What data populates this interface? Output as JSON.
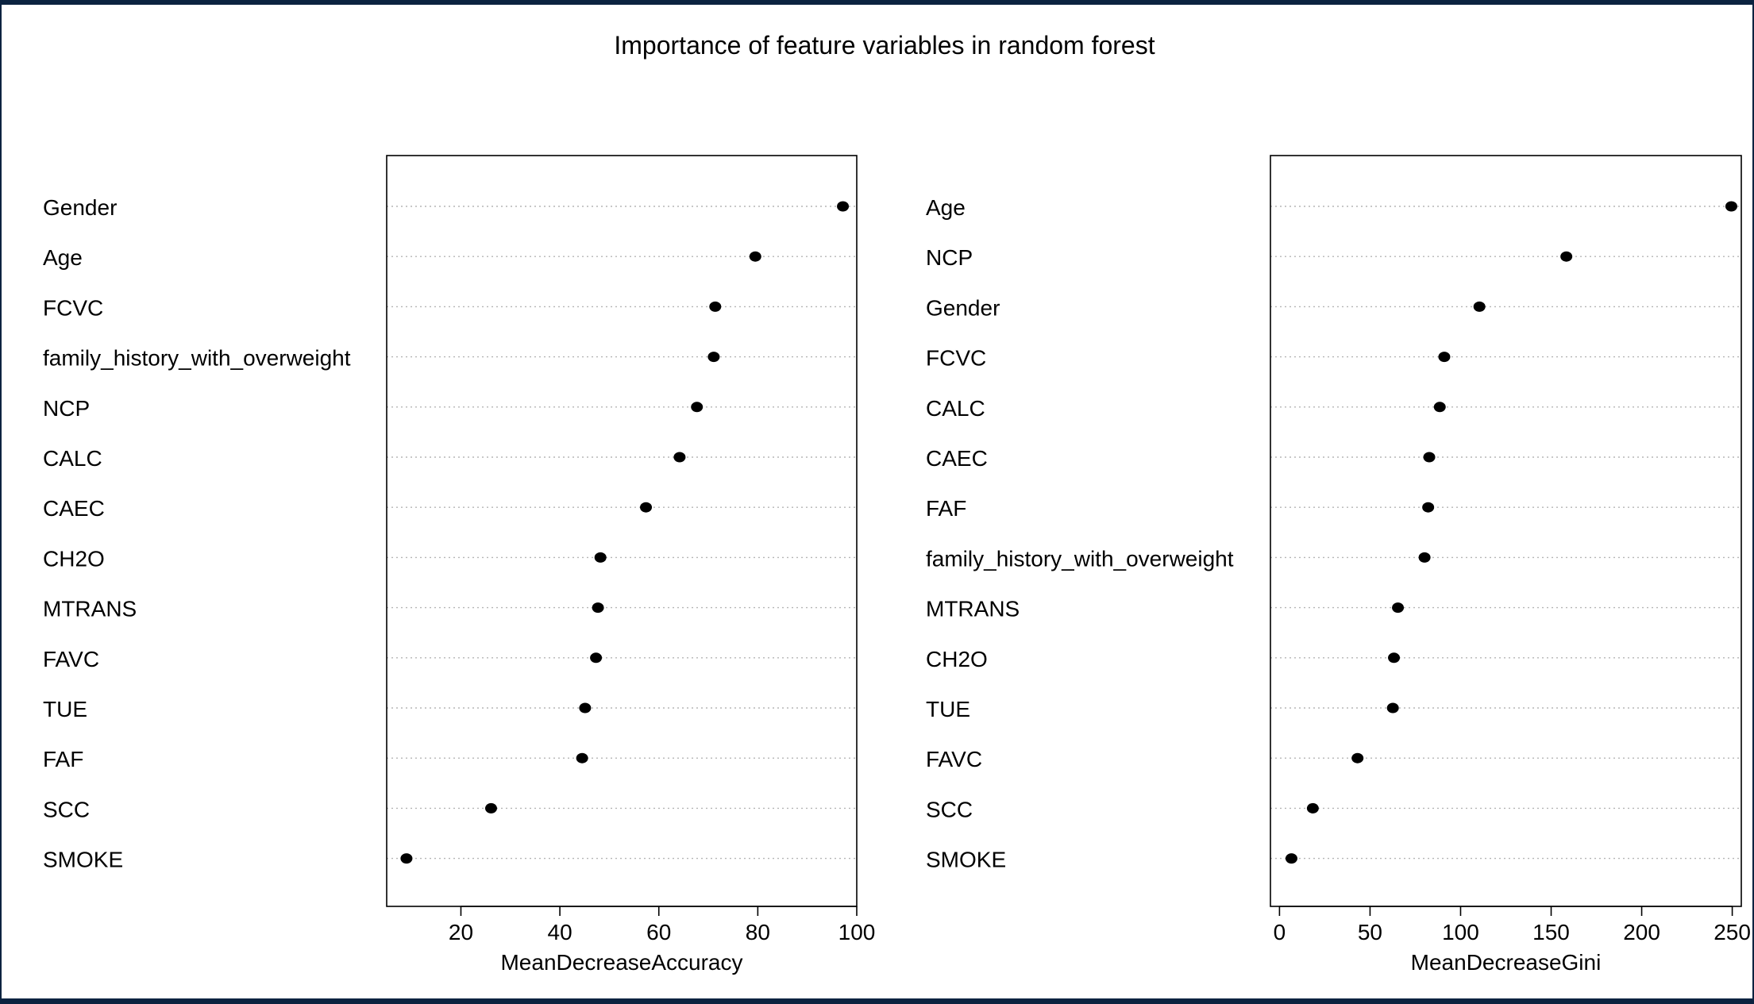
{
  "title": "Importance of feature variables in random forest",
  "chart_data": [
    {
      "type": "scatter",
      "variant": "dotchart",
      "xlabel": "MeanDecreaseAccuracy",
      "xlim": [
        5,
        100
      ],
      "xticks": [
        20,
        40,
        60,
        80,
        100
      ],
      "grid": "dotted horizontal lines",
      "points": [
        {
          "label": "Gender",
          "value": 97.2
        },
        {
          "label": "Age",
          "value": 79.5
        },
        {
          "label": "FCVC",
          "value": 71.4
        },
        {
          "label": "family_history_with_overweight",
          "value": 71.1
        },
        {
          "label": "NCP",
          "value": 67.7
        },
        {
          "label": "CALC",
          "value": 64.2
        },
        {
          "label": "CAEC",
          "value": 57.4
        },
        {
          "label": "CH2O",
          "value": 48.2
        },
        {
          "label": "MTRANS",
          "value": 47.7
        },
        {
          "label": "FAVC",
          "value": 47.3
        },
        {
          "label": "TUE",
          "value": 45.1
        },
        {
          "label": "FAF",
          "value": 44.5
        },
        {
          "label": "SCC",
          "value": 26.1
        },
        {
          "label": "SMOKE",
          "value": 9.0
        }
      ]
    },
    {
      "type": "scatter",
      "variant": "dotchart",
      "xlabel": "MeanDecreaseGini",
      "xlim": [
        -5,
        255
      ],
      "xticks": [
        0,
        50,
        100,
        150,
        200,
        250
      ],
      "grid": "dotted horizontal lines",
      "points": [
        {
          "label": "Age",
          "value": 249.5
        },
        {
          "label": "NCP",
          "value": 158.4
        },
        {
          "label": "Gender",
          "value": 110.4
        },
        {
          "label": "FCVC",
          "value": 91.0
        },
        {
          "label": "CALC",
          "value": 88.5
        },
        {
          "label": "CAEC",
          "value": 82.7
        },
        {
          "label": "FAF",
          "value": 82.1
        },
        {
          "label": "family_history_with_overweight",
          "value": 80.1
        },
        {
          "label": "MTRANS",
          "value": 65.4
        },
        {
          "label": "CH2O",
          "value": 63.2
        },
        {
          "label": "TUE",
          "value": 62.6
        },
        {
          "label": "FAVC",
          "value": 43.1
        },
        {
          "label": "SCC",
          "value": 18.4
        },
        {
          "label": "SMOKE",
          "value": 6.6
        }
      ]
    }
  ]
}
